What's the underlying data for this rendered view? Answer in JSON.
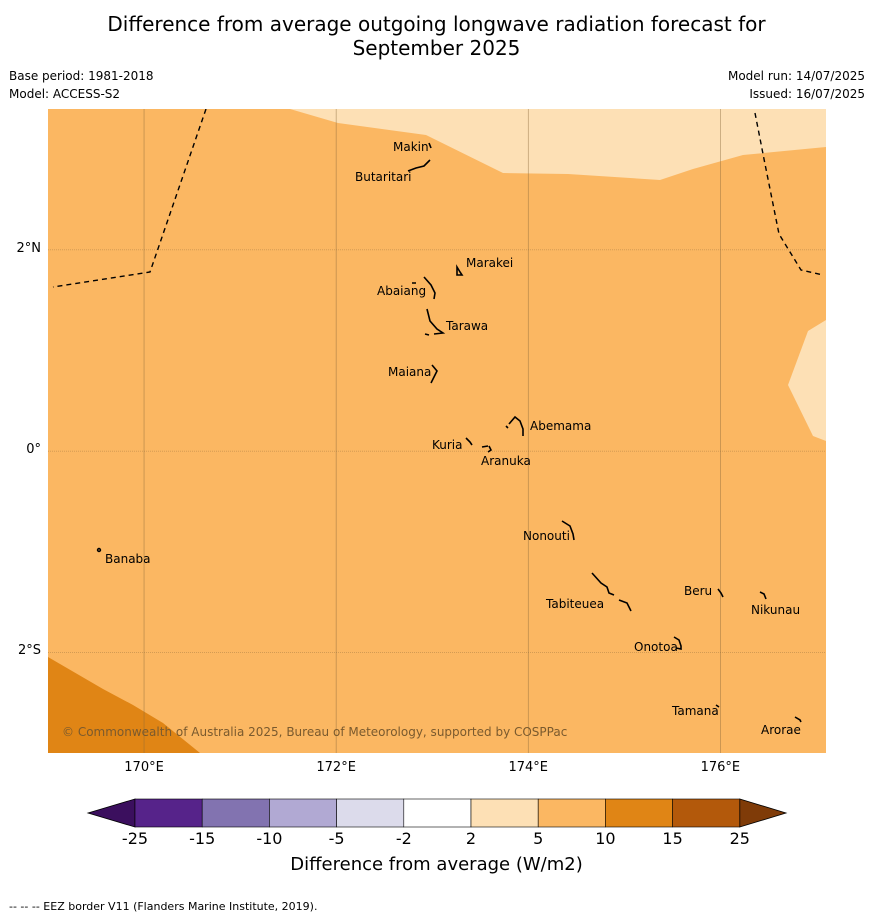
{
  "title_line1": "Difference from average outgoing longwave radiation forecast for",
  "title_line2": "September 2025",
  "base_period": "Base period: 1981-2018",
  "model": "Model: ACCESS-S2",
  "model_run": "Model run: 14/07/2025",
  "issued": "Issued: 16/07/2025",
  "copyright": "© Commonwealth of Australia 2025, Bureau of Meteorology, supported by COSPPac",
  "map": {
    "lon_range": [
      169,
      177.1
    ],
    "lat_range": [
      -3.0,
      3.4
    ],
    "lon_ticks": [
      {
        "value": 170,
        "label": "170°E"
      },
      {
        "value": 172,
        "label": "172°E"
      },
      {
        "value": 174,
        "label": "174°E"
      },
      {
        "value": 176,
        "label": "176°E"
      }
    ],
    "lat_ticks": [
      {
        "value": 2,
        "label": "2°N"
      },
      {
        "value": 0,
        "label": "0°"
      },
      {
        "value": -2,
        "label": "2°S"
      }
    ],
    "places": [
      {
        "name": "Makin",
        "lon": 173.0,
        "lat": 3.2
      },
      {
        "name": "Butaritari",
        "lon": 172.8,
        "lat": 3.05
      },
      {
        "name": "Marakei",
        "lon": 173.3,
        "lat": 2.0
      },
      {
        "name": "Abaiang",
        "lon": 172.95,
        "lat": 1.8
      },
      {
        "name": "Tarawa",
        "lon": 173.0,
        "lat": 1.4
      },
      {
        "name": "Maiana",
        "lon": 173.0,
        "lat": 0.95
      },
      {
        "name": "Abemama",
        "lon": 173.9,
        "lat": 0.4
      },
      {
        "name": "Kuria",
        "lon": 173.4,
        "lat": 0.22
      },
      {
        "name": "Aranuka",
        "lon": 173.6,
        "lat": 0.15
      },
      {
        "name": "Nonouti",
        "lon": 174.4,
        "lat": -0.65
      },
      {
        "name": "Banaba",
        "lon": 169.55,
        "lat": -0.87
      },
      {
        "name": "Tabiteuea",
        "lon": 174.8,
        "lat": -1.3
      },
      {
        "name": "Beru",
        "lon": 176.0,
        "lat": -1.33
      },
      {
        "name": "Nikunau",
        "lon": 176.45,
        "lat": -1.35
      },
      {
        "name": "Onotoa",
        "lon": 175.55,
        "lat": -1.8
      },
      {
        "name": "Tamana",
        "lon": 175.98,
        "lat": -2.5
      },
      {
        "name": "Arorae",
        "lon": 176.82,
        "lat": -2.65
      }
    ]
  },
  "colorbar": {
    "title": "Difference from average (W/m2)",
    "ticks": [
      "-25",
      "-15",
      "-10",
      "-5",
      "-2",
      "2",
      "5",
      "10",
      "15",
      "25"
    ],
    "colors": [
      "#3b0f5e",
      "#56238a",
      "#8273b0",
      "#b1a9d3",
      "#dcdbeb",
      "#ffffff",
      "#fde0b5",
      "#fbb762",
      "#e08515",
      "#b3590b",
      "#7f3b08"
    ]
  },
  "footer": "--  --  -- EEZ border V11 (Flanders Marine Institute, 2019)."
}
